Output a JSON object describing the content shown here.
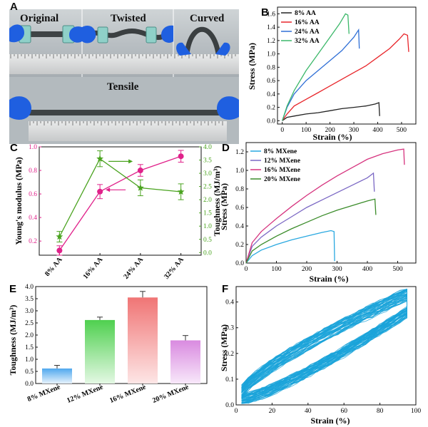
{
  "panels": {
    "A": {
      "letter": "A",
      "photo_labels": {
        "original": "Original",
        "twisted": "Twisted",
        "curved": "Curved",
        "tensile": "Tensile"
      }
    },
    "B": {
      "letter": "B"
    },
    "C": {
      "letter": "C"
    },
    "D": {
      "letter": "D"
    },
    "E": {
      "letter": "E"
    },
    "F": {
      "letter": "F"
    }
  },
  "chart_data": [
    {
      "id": "B",
      "type": "line",
      "xlabel": "Strain (%)",
      "ylabel": "Stress (MPa)",
      "xlim": [
        -20,
        560
      ],
      "ylim": [
        -0.05,
        1.7
      ],
      "xticks": [
        0,
        100,
        200,
        300,
        400,
        500
      ],
      "yticks": [
        0.0,
        0.2,
        0.4,
        0.6,
        0.8,
        1.0,
        1.2,
        1.4,
        1.6
      ],
      "legend_position": "top-left",
      "series": [
        {
          "name": "8% AA",
          "color": "#222222",
          "points": [
            [
              0,
              0
            ],
            [
              20,
              0.05
            ],
            [
              50,
              0.07
            ],
            [
              100,
              0.1
            ],
            [
              150,
              0.12
            ],
            [
              200,
              0.15
            ],
            [
              250,
              0.18
            ],
            [
              300,
              0.2
            ],
            [
              350,
              0.22
            ],
            [
              390,
              0.25
            ],
            [
              405,
              0.27
            ],
            [
              408,
              0.07
            ]
          ]
        },
        {
          "name": "16% AA",
          "color": "#e8252a",
          "points": [
            [
              0,
              0
            ],
            [
              20,
              0.1
            ],
            [
              50,
              0.22
            ],
            [
              100,
              0.32
            ],
            [
              150,
              0.42
            ],
            [
              200,
              0.52
            ],
            [
              250,
              0.62
            ],
            [
              300,
              0.72
            ],
            [
              350,
              0.82
            ],
            [
              400,
              0.95
            ],
            [
              450,
              1.08
            ],
            [
              490,
              1.22
            ],
            [
              510,
              1.3
            ],
            [
              525,
              1.28
            ],
            [
              530,
              1.03
            ]
          ]
        },
        {
          "name": "24% AA",
          "color": "#2f6fd6",
          "points": [
            [
              0,
              0
            ],
            [
              20,
              0.2
            ],
            [
              50,
              0.4
            ],
            [
              100,
              0.6
            ],
            [
              150,
              0.75
            ],
            [
              200,
              0.9
            ],
            [
              250,
              1.05
            ],
            [
              300,
              1.25
            ],
            [
              320,
              1.36
            ],
            [
              323,
              1.08
            ]
          ]
        },
        {
          "name": "32% AA",
          "color": "#3cb86a",
          "points": [
            [
              0,
              0
            ],
            [
              20,
              0.22
            ],
            [
              50,
              0.45
            ],
            [
              100,
              0.75
            ],
            [
              150,
              1.0
            ],
            [
              200,
              1.25
            ],
            [
              240,
              1.45
            ],
            [
              265,
              1.6
            ],
            [
              275,
              1.58
            ],
            [
              280,
              1.3
            ]
          ]
        }
      ]
    },
    {
      "id": "C",
      "type": "line",
      "categories": [
        "8% AA",
        "16% AA",
        "24% AA",
        "32% AA"
      ],
      "ylabel": "Young's modulus (MPa)",
      "y2label": "Toughness (MJ/m³)",
      "ylim": [
        0.08,
        1.0
      ],
      "y2lim": [
        -0.1,
        4.0
      ],
      "yticks": [
        0.2,
        0.4,
        0.6,
        0.8,
        1.0
      ],
      "y2ticks": [
        0.0,
        0.5,
        1.0,
        1.5,
        2.0,
        2.5,
        3.0,
        3.5,
        4.0
      ],
      "series": [
        {
          "name": "Young's modulus",
          "axis": "left",
          "color": "#e0218a",
          "marker": "circle",
          "values": [
            0.12,
            0.62,
            0.8,
            0.92
          ],
          "errors": [
            0.04,
            0.06,
            0.05,
            0.05
          ]
        },
        {
          "name": "Toughness",
          "axis": "right",
          "color": "#4aa31f",
          "marker": "star",
          "values": [
            0.6,
            3.55,
            2.45,
            2.3
          ],
          "errors": [
            0.2,
            0.3,
            0.3,
            0.3
          ]
        }
      ]
    },
    {
      "id": "D",
      "type": "line",
      "xlabel": "Strain (%)",
      "ylabel": "Stress (MPa)",
      "xlim": [
        0,
        560
      ],
      "ylim": [
        0,
        1.3
      ],
      "xticks": [
        0,
        100,
        200,
        300,
        400,
        500
      ],
      "yticks": [
        0.0,
        0.2,
        0.4,
        0.6,
        0.8,
        1.0,
        1.2
      ],
      "legend_position": "top-left",
      "series": [
        {
          "name": "8% MXene",
          "color": "#29a8e0",
          "points": [
            [
              0,
              0
            ],
            [
              20,
              0.08
            ],
            [
              50,
              0.14
            ],
            [
              100,
              0.2
            ],
            [
              150,
              0.25
            ],
            [
              200,
              0.29
            ],
            [
              250,
              0.33
            ],
            [
              280,
              0.35
            ],
            [
              290,
              0.34
            ],
            [
              292,
              0.02
            ]
          ]
        },
        {
          "name": "12% MXene",
          "color": "#7b68c4",
          "points": [
            [
              0,
              0
            ],
            [
              20,
              0.18
            ],
            [
              50,
              0.28
            ],
            [
              100,
              0.4
            ],
            [
              150,
              0.5
            ],
            [
              200,
              0.6
            ],
            [
              250,
              0.68
            ],
            [
              300,
              0.76
            ],
            [
              350,
              0.84
            ],
            [
              400,
              0.92
            ],
            [
              420,
              0.97
            ],
            [
              423,
              0.77
            ]
          ]
        },
        {
          "name": "16% MXene",
          "color": "#d6337e",
          "points": [
            [
              0,
              0
            ],
            [
              20,
              0.22
            ],
            [
              50,
              0.34
            ],
            [
              100,
              0.48
            ],
            [
              150,
              0.61
            ],
            [
              200,
              0.73
            ],
            [
              250,
              0.84
            ],
            [
              300,
              0.94
            ],
            [
              350,
              1.03
            ],
            [
              400,
              1.12
            ],
            [
              450,
              1.18
            ],
            [
              500,
              1.22
            ],
            [
              520,
              1.23
            ],
            [
              522,
              1.06
            ]
          ]
        },
        {
          "name": "20% MXene",
          "color": "#3b8c2a",
          "points": [
            [
              0,
              0
            ],
            [
              20,
              0.13
            ],
            [
              50,
              0.2
            ],
            [
              100,
              0.29
            ],
            [
              150,
              0.37
            ],
            [
              200,
              0.44
            ],
            [
              250,
              0.51
            ],
            [
              300,
              0.57
            ],
            [
              350,
              0.62
            ],
            [
              400,
              0.67
            ],
            [
              425,
              0.69
            ],
            [
              428,
              0.52
            ]
          ]
        }
      ]
    },
    {
      "id": "E",
      "type": "bar",
      "categories": [
        "8% MXene",
        "12% MXene",
        "16% MXene",
        "20% MXene"
      ],
      "ylabel": "Toughness (MJ/m³)",
      "ylim": [
        0,
        4.0
      ],
      "yticks": [
        0.0,
        0.5,
        1.0,
        1.5,
        2.0,
        2.5,
        3.0,
        3.5,
        4.0
      ],
      "values": [
        0.62,
        2.62,
        3.55,
        1.78
      ],
      "errors": [
        0.13,
        0.12,
        0.25,
        0.2
      ],
      "colors": [
        "#4fa8ee",
        "#4fd04f",
        "#f07575",
        "#d98ae0"
      ]
    },
    {
      "id": "F",
      "type": "line",
      "xlabel": "Strain (%)",
      "ylabel": "Stress (MPa)",
      "xlim": [
        0,
        100
      ],
      "ylim": [
        0,
        0.46
      ],
      "xticks": [
        0,
        20,
        40,
        60,
        80,
        100
      ],
      "yticks": [
        0.0,
        0.1,
        0.2,
        0.3,
        0.4
      ],
      "series": [
        {
          "color": "#1aa3d9",
          "cycles": 50,
          "strain_range": [
            3,
            95
          ],
          "stress_range": [
            0.03,
            0.44
          ]
        }
      ]
    }
  ]
}
